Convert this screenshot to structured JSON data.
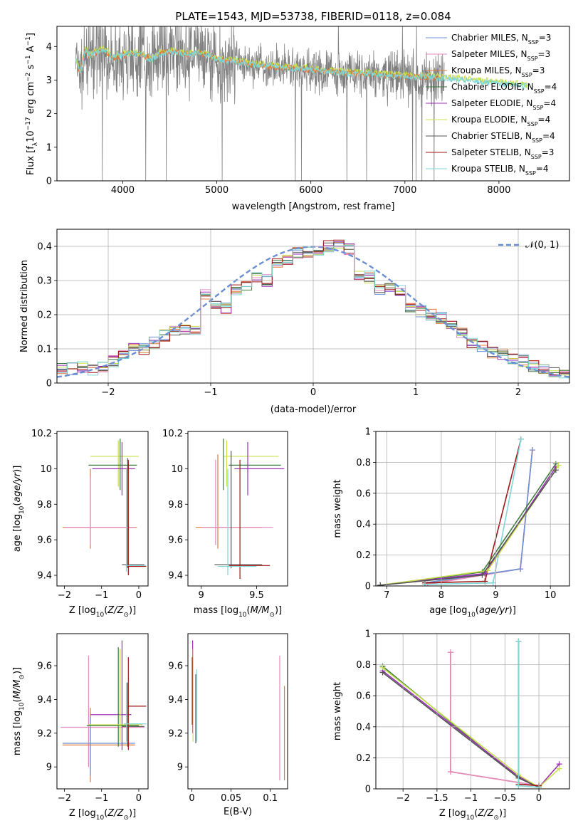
{
  "title": "PLATE=1543, MJD=53738, FIBERID=0118, z=0.084",
  "colors": {
    "Chabrier MILES": "#6a8fd4",
    "Salpeter MILES": "#e58ac0",
    "Kroupa MILES": "#e07a3a",
    "Chabrier ELODIE": "#3d7a3d",
    "Salpeter ELODIE": "#9b2fb5",
    "Kroupa ELODIE": "#c8e04a",
    "Chabrier STELIB": "#555555",
    "Salpeter STELIB": "#a01515",
    "Kroupa STELIB": "#7fd6d6",
    "data": "#808080",
    "normal": "#6a8fd4"
  },
  "legend_top": [
    "Chabrier MILES, N_SSP=3",
    "Salpeter MILES, N_SSP=3",
    "Kroupa MILES, N_SSP=3",
    "Chabrier ELODIE, N_SSP=4",
    "Salpeter ELODIE, N_SSP=4",
    "Kroupa ELODIE, N_SSP=4",
    "Chabrier STELIB, N_SSP=4",
    "Salpeter STELIB, N_SSP=3",
    "Kroupa STELIB, N_SSP=4"
  ],
  "legend_hist": "𝒩(0, 1)",
  "chart_data": [
    {
      "id": "spectrum",
      "type": "line",
      "xlabel": "wavelength [Angstrom, rest frame]",
      "ylabel": "Flux [f_λ10^-17 erg cm^-2 s^-1 A^-1]",
      "xlim": [
        3300,
        8750
      ],
      "ylim": [
        0,
        4.6
      ],
      "xticks": [
        4000,
        5000,
        6000,
        7000,
        8000
      ],
      "yticks": [
        0,
        1,
        2,
        3,
        4
      ],
      "model_continuum": {
        "x": [
          3500,
          3550,
          3600,
          3650,
          3700,
          3800,
          3900,
          4000,
          4100,
          4200,
          4300,
          4400,
          4500,
          4600,
          4700,
          4800,
          4900,
          5000,
          5200,
          5400,
          5600,
          5800,
          6000,
          6200,
          6400,
          6600,
          6800,
          7000,
          7200,
          7400,
          7600,
          7800,
          8000,
          8200,
          8400
        ],
        "y": [
          3.6,
          3.2,
          3.9,
          3.7,
          3.8,
          3.9,
          3.65,
          3.75,
          3.8,
          3.75,
          3.6,
          3.8,
          3.85,
          3.8,
          3.75,
          3.8,
          3.75,
          3.6,
          3.55,
          3.45,
          3.4,
          3.35,
          3.3,
          3.25,
          3.2,
          3.2,
          3.15,
          3.1,
          3.1,
          3.05,
          3.0,
          2.95,
          2.9,
          2.85,
          2.8
        ]
      }
    },
    {
      "id": "residual-histogram",
      "type": "area",
      "xlabel": "(data-model)/error",
      "ylabel": "Normed distribution",
      "xlim": [
        -2.5,
        2.5
      ],
      "ylim": [
        0,
        0.45
      ],
      "xticks": [
        -2,
        -1,
        0,
        1,
        2
      ],
      "yticks": [
        0,
        0.1,
        0.2,
        0.3,
        0.4
      ],
      "bin_edges": [
        -2.5,
        -2.4,
        -2.3,
        -2.2,
        -2.1,
        -2.0,
        -1.9,
        -1.8,
        -1.7,
        -1.6,
        -1.5,
        -1.4,
        -1.3,
        -1.2,
        -1.1,
        -1.0,
        -0.9,
        -0.8,
        -0.7,
        -0.6,
        -0.5,
        -0.4,
        -0.3,
        -0.2,
        -0.1,
        0.0,
        0.1,
        0.2,
        0.3,
        0.4,
        0.5,
        0.6,
        0.7,
        0.8,
        0.9,
        1.0,
        1.1,
        1.2,
        1.3,
        1.4,
        1.5,
        1.6,
        1.7,
        1.8,
        1.9,
        2.0,
        2.1,
        2.2,
        2.3,
        2.4,
        2.5
      ],
      "values": [
        0.04,
        0.042,
        0.045,
        0.04,
        0.05,
        0.065,
        0.085,
        0.1,
        0.1,
        0.12,
        0.14,
        0.155,
        0.16,
        0.15,
        0.26,
        0.23,
        0.22,
        0.27,
        0.28,
        0.31,
        0.3,
        0.35,
        0.36,
        0.38,
        0.38,
        0.39,
        0.4,
        0.41,
        0.39,
        0.32,
        0.31,
        0.27,
        0.28,
        0.27,
        0.22,
        0.21,
        0.2,
        0.19,
        0.17,
        0.15,
        0.12,
        0.11,
        0.09,
        0.085,
        0.07,
        0.065,
        0.05,
        0.045,
        0.03,
        0.025
      ],
      "series": [
        {
          "name": "Chabrier MILES",
          "offsets_seed": 1
        },
        {
          "name": "Salpeter MILES",
          "offsets_seed": 2
        },
        {
          "name": "Kroupa MILES",
          "offsets_seed": 3
        },
        {
          "name": "Chabrier ELODIE",
          "offsets_seed": 4
        },
        {
          "name": "Salpeter ELODIE",
          "offsets_seed": 5
        },
        {
          "name": "Kroupa ELODIE",
          "offsets_seed": 6
        },
        {
          "name": "Chabrier STELIB",
          "offsets_seed": 7
        },
        {
          "name": "Salpeter STELIB",
          "offsets_seed": 8
        },
        {
          "name": "Kroupa STELIB",
          "offsets_seed": 9
        }
      ],
      "normal_curve": "N(0,1)"
    },
    {
      "id": "age-vs-Z",
      "type": "scatter",
      "xlabel": "Z [log10(Z/Z☉)]",
      "ylabel": "age [log10(age/yr)]",
      "xlim": [
        -2.2,
        0.25
      ],
      "ylim": [
        9.34,
        10.21
      ],
      "xticks": [
        -2,
        -1,
        0
      ],
      "yticks": [
        9.4,
        9.6,
        9.8,
        10.0,
        10.2
      ],
      "crosses": [
        {
          "series": "Kroupa ELODIE",
          "x": [
            -1.3,
            0.0
          ],
          "y": [
            10.07,
            10.07
          ],
          "vx": -0.55,
          "vy": [
            9.9,
            10.16
          ]
        },
        {
          "series": "Chabrier ELODIE",
          "x": [
            -1.35,
            -0.05
          ],
          "y": [
            10.02,
            10.02
          ],
          "vx": -0.5,
          "vy": [
            9.88,
            10.17
          ]
        },
        {
          "series": "Salpeter ELODIE",
          "x": [
            -1.25,
            -0.1
          ],
          "y": [
            10.0,
            10.0
          ],
          "vx": -0.45,
          "vy": [
            9.85,
            10.15
          ]
        },
        {
          "series": "Chabrier STELIB",
          "x": [
            -0.45,
            0.15
          ],
          "y": [
            9.46,
            9.46
          ],
          "vx": -0.3,
          "vy": [
            9.44,
            10.06
          ]
        },
        {
          "series": "Kroupa MILES",
          "x": [
            -2.05,
            -0.05
          ],
          "y": [
            9.67,
            9.67
          ],
          "vx": -1.3,
          "vy": [
            9.55,
            10.0
          ]
        },
        {
          "series": "Salpeter MILES",
          "x": [
            -2.0,
            -0.1
          ],
          "y": [
            9.67,
            9.67
          ],
          "vx": -1.3,
          "vy": [
            9.57,
            9.95
          ]
        },
        {
          "series": "Salpeter STELIB",
          "x": [
            -0.3,
            0.2
          ],
          "y": [
            9.45,
            9.45
          ],
          "vx": -0.28,
          "vy": [
            9.4,
            10.05
          ]
        },
        {
          "series": "Kroupa STELIB",
          "x": [
            -0.35,
            0.2
          ],
          "y": [
            9.455,
            9.455
          ],
          "vx": -0.33,
          "vy": [
            9.42,
            10.0
          ]
        }
      ]
    },
    {
      "id": "age-vs-mass",
      "type": "scatter",
      "xlabel": "mass [log10(M/M☉)]",
      "ylabel": "",
      "xlim": [
        8.88,
        9.78
      ],
      "ylim": [
        9.34,
        10.21
      ],
      "xticks": [
        9.0,
        9.5
      ],
      "yticks": [
        9.4,
        9.6,
        9.8,
        10.0,
        10.2
      ],
      "crosses": [
        {
          "series": "Kroupa ELODIE",
          "x": [
            9.2,
            9.7
          ],
          "y": [
            10.07,
            10.07
          ],
          "vx": 9.23,
          "vy": [
            9.9,
            10.16
          ]
        },
        {
          "series": "Chabrier ELODIE",
          "x": [
            9.25,
            9.72
          ],
          "y": [
            10.02,
            10.02
          ],
          "vx": 9.2,
          "vy": [
            9.88,
            10.17
          ]
        },
        {
          "series": "Salpeter ELODIE",
          "x": [
            9.3,
            9.75
          ],
          "y": [
            10.0,
            10.0
          ],
          "vx": 9.42,
          "vy": [
            9.85,
            10.15
          ]
        },
        {
          "series": "Kroupa MILES",
          "x": [
            8.95,
            9.55
          ],
          "y": [
            9.67,
            9.67
          ],
          "vx": 9.15,
          "vy": [
            9.55,
            10.08
          ]
        },
        {
          "series": "Salpeter MILES",
          "x": [
            9.0,
            9.65
          ],
          "y": [
            9.67,
            9.67
          ],
          "vx": 9.13,
          "vy": [
            9.57,
            10.05
          ]
        },
        {
          "series": "Chabrier STELIB",
          "x": [
            9.12,
            9.55
          ],
          "y": [
            9.46,
            9.46
          ],
          "vx": 9.27,
          "vy": [
            9.44,
            10.1
          ]
        },
        {
          "series": "Salpeter STELIB",
          "x": [
            9.25,
            9.62
          ],
          "y": [
            9.455,
            9.455
          ],
          "vx": 9.35,
          "vy": [
            9.38,
            10.05
          ]
        },
        {
          "series": "Kroupa STELIB",
          "x": [
            9.15,
            9.5
          ],
          "y": [
            9.45,
            9.45
          ],
          "vx": 9.24,
          "vy": [
            9.4,
            10.0
          ]
        }
      ]
    },
    {
      "id": "mass-weight-vs-age",
      "type": "line",
      "xlabel": "age [log10(age/yr)]",
      "ylabel": "mass weight",
      "xlim": [
        6.8,
        10.35
      ],
      "ylim": [
        0,
        1.0
      ],
      "xticks": [
        7,
        8,
        9,
        10
      ],
      "yticks": [
        0.0,
        0.2,
        0.4,
        0.6,
        0.8,
        1.0
      ],
      "series": [
        {
          "name": "Kroupa MILES",
          "x": [
            7.7,
            9.45,
            9.67
          ],
          "y": [
            0.01,
            0.11,
            0.88
          ]
        },
        {
          "name": "Salpeter MILES",
          "x": [
            7.75,
            9.45,
            9.67
          ],
          "y": [
            0.01,
            0.11,
            0.88
          ]
        },
        {
          "name": "Chabrier MILES",
          "x": [
            7.7,
            9.45,
            9.67
          ],
          "y": [
            0.02,
            0.11,
            0.88
          ]
        },
        {
          "name": "Salpeter STELIB",
          "x": [
            7.7,
            8.8,
            9.46
          ],
          "y": [
            0.02,
            0.03,
            0.95
          ]
        },
        {
          "name": "Kroupa STELIB",
          "x": [
            7.7,
            8.95,
            9.46
          ],
          "y": [
            0.01,
            0.02,
            0.95
          ]
        },
        {
          "name": "Chabrier ELODIE",
          "x": [
            6.88,
            8.75,
            10.1
          ],
          "y": [
            0.005,
            0.09,
            0.79
          ]
        },
        {
          "name": "Salpeter ELODIE",
          "x": [
            6.88,
            8.8,
            10.1
          ],
          "y": [
            0.005,
            0.08,
            0.77
          ]
        },
        {
          "name": "Kroupa ELODIE",
          "x": [
            6.88,
            8.85,
            10.15
          ],
          "y": [
            0.005,
            0.1,
            0.78
          ]
        },
        {
          "name": "Chabrier STELIB",
          "x": [
            6.88,
            8.75,
            10.1
          ],
          "y": [
            0.005,
            0.07,
            0.75
          ]
        }
      ]
    },
    {
      "id": "mass-vs-Z",
      "type": "scatter",
      "xlabel": "Z [log10(Z/Z☉)]",
      "ylabel": "mass [log10(M/M☉)]",
      "xlim": [
        -2.2,
        0.25
      ],
      "ylim": [
        8.87,
        9.79
      ],
      "xticks": [
        -2,
        -1,
        0
      ],
      "yticks": [
        9.0,
        9.2,
        9.4,
        9.6
      ],
      "crosses": [
        {
          "series": "Salpeter MILES",
          "x": [
            -2.1,
            0.15
          ],
          "y": [
            9.235,
            9.235
          ],
          "vx": -1.35,
          "vy": [
            9.0,
            9.66
          ]
        },
        {
          "series": "Kroupa MILES",
          "x": [
            -2.05,
            -0.1
          ],
          "y": [
            9.13,
            9.13
          ],
          "vx": -1.3,
          "vy": [
            8.91,
            9.35
          ]
        },
        {
          "series": "Chabrier MILES",
          "x": [
            -2.05,
            -0.1
          ],
          "y": [
            9.14,
            9.14
          ],
          "vx": -1.3,
          "vy": [
            8.95,
            9.3
          ]
        },
        {
          "series": "Salpeter ELODIE",
          "x": [
            -1.3,
            -0.2
          ],
          "y": [
            9.31,
            9.31
          ],
          "vx": -0.45,
          "vy": [
            9.1,
            9.75
          ]
        },
        {
          "series": "Chabrier ELODIE",
          "x": [
            -1.4,
            0.0
          ],
          "y": [
            9.245,
            9.245
          ],
          "vx": -0.55,
          "vy": [
            9.12,
            9.71
          ]
        },
        {
          "series": "Kroupa ELODIE",
          "x": [
            -1.35,
            0.1
          ],
          "y": [
            9.25,
            9.25
          ],
          "vx": -0.5,
          "vy": [
            9.15,
            9.7
          ]
        },
        {
          "series": "Salpeter STELIB",
          "x": [
            -0.3,
            0.2
          ],
          "y": [
            9.36,
            9.36
          ],
          "vx": -0.28,
          "vy": [
            9.1,
            9.65
          ]
        },
        {
          "series": "Chabrier STELIB",
          "x": [
            -0.45,
            0.15
          ],
          "y": [
            9.24,
            9.24
          ],
          "vx": -0.3,
          "vy": [
            9.12,
            9.5
          ]
        },
        {
          "series": "Kroupa STELIB",
          "x": [
            -0.4,
            0.2
          ],
          "y": [
            9.255,
            9.255
          ],
          "vx": -0.33,
          "vy": [
            9.15,
            9.5
          ]
        }
      ]
    },
    {
      "id": "mass-vs-ebv",
      "type": "scatter",
      "xlabel": "E(B-V)",
      "ylabel": "",
      "xlim": [
        -0.005,
        0.122
      ],
      "ylim": [
        8.87,
        9.79
      ],
      "xticks": [
        0.0,
        0.05,
        0.1
      ],
      "yticks": [
        9.0,
        9.2,
        9.4,
        9.6
      ],
      "vlines": [
        {
          "series": "Salpeter ELODIE",
          "x": 0.001,
          "y": [
            9.2,
            9.75
          ]
        },
        {
          "series": "Kroupa ELODIE",
          "x": 0.0015,
          "y": [
            9.15,
            9.7
          ]
        },
        {
          "series": "Salpeter STELIB",
          "x": 0.0005,
          "y": [
            9.25,
            9.65
          ]
        },
        {
          "series": "Chabrier STELIB",
          "x": 0.005,
          "y": [
            9.14,
            9.55
          ]
        },
        {
          "series": "Kroupa STELIB",
          "x": 0.006,
          "y": [
            9.15,
            9.58
          ]
        },
        {
          "series": "Salpeter MILES",
          "x": 0.112,
          "y": [
            8.92,
            9.66
          ]
        },
        {
          "series": "Kroupa MILES",
          "x": 0.118,
          "y": [
            8.92,
            9.48
          ]
        }
      ]
    },
    {
      "id": "mass-weight-vs-Z",
      "type": "line",
      "xlabel": "Z [log10(Z/Z☉)]",
      "ylabel": "mass weight",
      "xlim": [
        -2.4,
        0.45
      ],
      "ylim": [
        0,
        1.0
      ],
      "xticks": [
        -2.0,
        -1.5,
        -1.0,
        -0.5,
        0.0
      ],
      "yticks": [
        0.0,
        0.2,
        0.4,
        0.6,
        0.8,
        1.0
      ],
      "series": [
        {
          "name": "Kroupa MILES",
          "x": [
            -1.3,
            -1.3,
            0.0
          ],
          "y": [
            0.88,
            0.11,
            0.02
          ]
        },
        {
          "name": "Salpeter MILES",
          "x": [
            -1.3,
            -1.3,
            0.0
          ],
          "y": [
            0.88,
            0.11,
            0.02
          ]
        },
        {
          "name": "Chabrier ELODIE",
          "x": [
            -2.3,
            -0.3,
            0.0
          ],
          "y": [
            0.79,
            0.07,
            0.01
          ]
        },
        {
          "name": "Salpeter ELODIE",
          "x": [
            -2.3,
            -0.3,
            0.0,
            0.3
          ],
          "y": [
            0.76,
            0.08,
            0.01,
            0.16
          ]
        },
        {
          "name": "Kroupa ELODIE",
          "x": [
            -2.3,
            -0.3,
            0.0,
            0.3
          ],
          "y": [
            0.78,
            0.09,
            0.01,
            0.13
          ]
        },
        {
          "name": "Chabrier STELIB",
          "x": [
            -2.3,
            -0.3,
            0.0
          ],
          "y": [
            0.75,
            0.07,
            0.01
          ]
        },
        {
          "name": "Salpeter STELIB",
          "x": [
            -0.3,
            -0.3,
            0.0
          ],
          "y": [
            0.95,
            0.03,
            0.02
          ]
        },
        {
          "name": "Kroupa STELIB",
          "x": [
            -0.3,
            -0.3,
            0.0
          ],
          "y": [
            0.95,
            0.02,
            0.01
          ]
        }
      ]
    }
  ]
}
